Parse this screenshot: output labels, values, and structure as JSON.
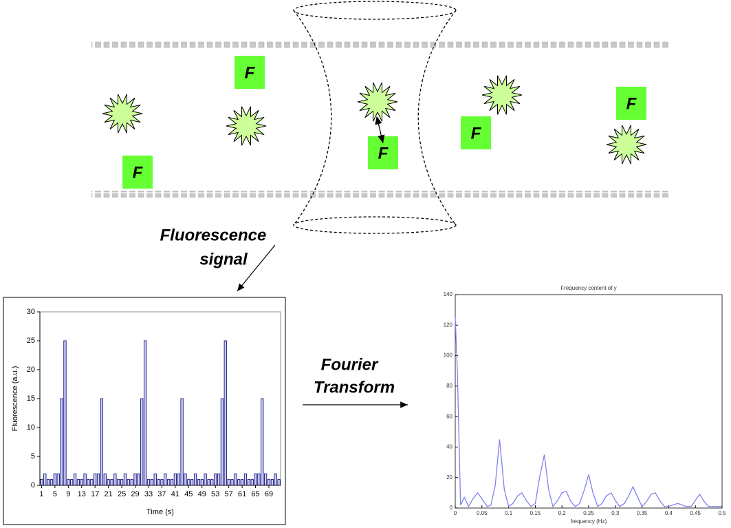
{
  "diagram": {
    "f_labels": [
      "F",
      "F",
      "F",
      "F",
      "F"
    ],
    "fluorescence_signal": [
      "Fluorescence",
      "signal"
    ],
    "fourier_transform": [
      "Fourier",
      "Transform"
    ]
  },
  "chart_data": [
    {
      "type": "bar",
      "xlabel": "Time (s)",
      "ylabel": "Fluorescence (a.u.)",
      "categories": [
        "1",
        null,
        null,
        null,
        "5",
        null,
        null,
        null,
        "9",
        null,
        null,
        null,
        "13",
        null,
        null,
        null,
        "17",
        null,
        null,
        null,
        "21",
        null,
        null,
        null,
        "25",
        null,
        null,
        null,
        "29",
        null,
        null,
        null,
        "33",
        null,
        null,
        null,
        "37",
        null,
        null,
        null,
        "41",
        null,
        null,
        null,
        "45",
        null,
        null,
        null,
        "49",
        null,
        null,
        null,
        "53",
        null,
        null,
        null,
        "57",
        null,
        null,
        null,
        "61",
        null,
        null,
        null,
        "65",
        null,
        null,
        null,
        "69",
        null,
        null,
        null
      ],
      "values": [
        1,
        2,
        1,
        1,
        2,
        2,
        15,
        25,
        1,
        1,
        2,
        1,
        1,
        2,
        1,
        1,
        2,
        2,
        15,
        2,
        1,
        1,
        2,
        1,
        1,
        2,
        1,
        1,
        2,
        2,
        15,
        25,
        1,
        1,
        2,
        1,
        1,
        2,
        1,
        1,
        2,
        2,
        15,
        2,
        1,
        1,
        2,
        1,
        1,
        2,
        1,
        1,
        2,
        2,
        15,
        25,
        1,
        1,
        2,
        1,
        1,
        2,
        1,
        1,
        2,
        2,
        15,
        2,
        1,
        1,
        2,
        1
      ],
      "color": "#ccccff",
      "ylim": [
        0,
        30
      ],
      "yticks": [
        0,
        5,
        10,
        15,
        20,
        25,
        30
      ]
    },
    {
      "type": "line",
      "title": "Frequency content of y",
      "xlabel": "frequency (Hz)",
      "x": [
        0,
        0.004,
        0.01,
        0.017,
        0.025,
        0.033,
        0.042,
        0.05,
        0.06,
        0.067,
        0.075,
        0.083,
        0.092,
        0.1,
        0.108,
        0.117,
        0.125,
        0.133,
        0.142,
        0.15,
        0.158,
        0.167,
        0.175,
        0.183,
        0.192,
        0.2,
        0.208,
        0.217,
        0.225,
        0.233,
        0.242,
        0.25,
        0.258,
        0.267,
        0.275,
        0.283,
        0.292,
        0.3,
        0.308,
        0.317,
        0.325,
        0.333,
        0.342,
        0.35,
        0.358,
        0.367,
        0.375,
        0.383,
        0.392,
        0.4,
        0.408,
        0.417,
        0.425,
        0.433,
        0.442,
        0.45,
        0.458,
        0.467,
        0.475,
        0.483,
        0.492,
        0.5
      ],
      "values": [
        125,
        90,
        2,
        7,
        1,
        6,
        10,
        6,
        1,
        2,
        15,
        45,
        12,
        1,
        3,
        8,
        10,
        5,
        1,
        3,
        20,
        35,
        12,
        1,
        5,
        10,
        11,
        4,
        1,
        3,
        12,
        22,
        10,
        1,
        3,
        8,
        10,
        5,
        1,
        3,
        8,
        14,
        7,
        1,
        4,
        9,
        10,
        5,
        1,
        1,
        2,
        3,
        2,
        1,
        1,
        5,
        9,
        4,
        1,
        1,
        1,
        1
      ],
      "color": "#8080ee",
      "xlim": [
        0,
        0.5
      ],
      "xticks": [
        0,
        0.05,
        0.1,
        0.15,
        0.2,
        0.25,
        0.3,
        0.35,
        0.4,
        0.45,
        0.5
      ],
      "ylim": [
        0,
        140
      ],
      "yticks": [
        0,
        20,
        40,
        60,
        80,
        100,
        120,
        140
      ]
    }
  ]
}
